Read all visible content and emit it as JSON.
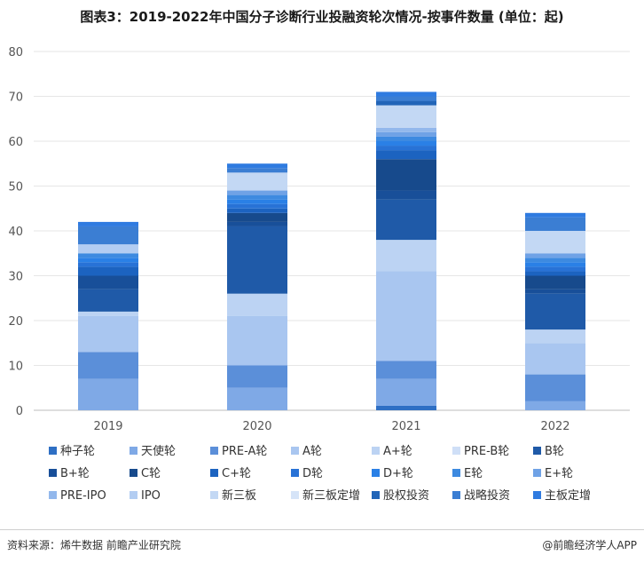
{
  "title": "图表3：2019-2022年中国分子诊断行业投融资轮次情况-按事件数量 (单位：起)",
  "source": "资料来源：烯牛数据 前瞻产业研究院",
  "brand": "@前瞻经济学人APP",
  "chart_data": {
    "type": "bar",
    "stacked": true,
    "title": "图表3：2019-2022年中国分子诊断行业投融资轮次情况-按事件数量 (单位：起)",
    "xlabel": "",
    "ylabel": "",
    "categories": [
      "2019",
      "2020",
      "2021",
      "2022"
    ],
    "ylim": [
      0,
      80
    ],
    "yticks": [
      0,
      10,
      20,
      30,
      40,
      50,
      60,
      70,
      80
    ],
    "grid": true,
    "legend_position": "bottom",
    "series": [
      {
        "name": "种子轮",
        "color": "#2e6fc4",
        "values": [
          0,
          0,
          1,
          0
        ]
      },
      {
        "name": "天使轮",
        "color": "#7fa9e6",
        "values": [
          7,
          5,
          6,
          2
        ]
      },
      {
        "name": "PRE-A轮",
        "color": "#5b8fd9",
        "values": [
          6,
          5,
          4,
          6
        ]
      },
      {
        "name": "A轮",
        "color": "#a9c6f0",
        "values": [
          8,
          11,
          20,
          7
        ]
      },
      {
        "name": "A+轮",
        "color": "#bcd3f3",
        "values": [
          1,
          5,
          7,
          3
        ]
      },
      {
        "name": "PRE-B轮",
        "color": "#cfdff7",
        "values": [
          0,
          0,
          0,
          0
        ]
      },
      {
        "name": "B轮",
        "color": "#1f5aa8",
        "values": [
          5,
          15,
          9,
          8
        ]
      },
      {
        "name": "B+轮",
        "color": "#184f99",
        "values": [
          3,
          1,
          2,
          1
        ]
      },
      {
        "name": "C轮",
        "color": "#174a8c",
        "values": [
          0,
          2,
          7,
          3
        ]
      },
      {
        "name": "C+轮",
        "color": "#1c63c0",
        "values": [
          2,
          1,
          2,
          1
        ]
      },
      {
        "name": "D轮",
        "color": "#2872d6",
        "values": [
          1,
          1,
          1,
          1
        ]
      },
      {
        "name": "D+轮",
        "color": "#2a80e6",
        "values": [
          1,
          1,
          1,
          1
        ]
      },
      {
        "name": "E轮",
        "color": "#3d8ae0",
        "values": [
          1,
          1,
          1,
          1
        ]
      },
      {
        "name": "E+轮",
        "color": "#6fa2e6",
        "values": [
          0,
          1,
          1,
          1
        ]
      },
      {
        "name": "PRE-IPO",
        "color": "#93b8ec",
        "values": [
          0,
          0,
          1,
          0
        ]
      },
      {
        "name": "IPO",
        "color": "#b3cdf2",
        "values": [
          2,
          0,
          0,
          0
        ]
      },
      {
        "name": "新三板",
        "color": "#c3d8f4",
        "values": [
          0,
          4,
          5,
          5
        ]
      },
      {
        "name": "新三板定增",
        "color": "#d6e4f8",
        "values": [
          0,
          0,
          0,
          0
        ]
      },
      {
        "name": "股权投资",
        "color": "#2265b8",
        "values": [
          0,
          0,
          1,
          0
        ]
      },
      {
        "name": "战略投资",
        "color": "#3b7ed3",
        "values": [
          4,
          1,
          1,
          3
        ]
      },
      {
        "name": "主板定增",
        "color": "#2f7be0",
        "values": [
          1,
          1,
          1,
          1
        ]
      }
    ]
  }
}
